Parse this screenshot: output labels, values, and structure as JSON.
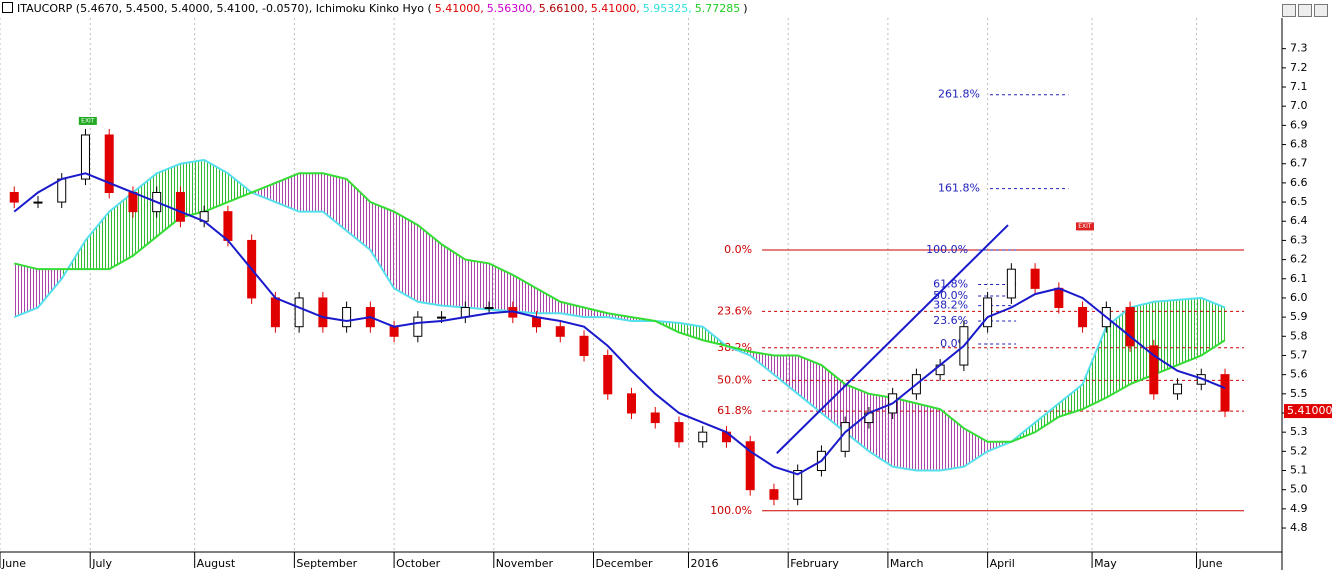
{
  "header": [
    {
      "text": "ITAUCORP (5.4670, 5.4500, 5.4000, 5.4100, -0.0570), Ichimoku Kinko Hyo (",
      "color": "#000000"
    },
    {
      "text": "5.41000,",
      "color": "#e00000"
    },
    {
      "text": "5.56300,",
      "color": "#cc00cc"
    },
    {
      "text": "5.66100,",
      "color": "#b00000"
    },
    {
      "text": "5.41000,",
      "color": "#e00000"
    },
    {
      "text": "5.95325,",
      "color": "#33dddd"
    },
    {
      "text": "5.77285",
      "color": "#22cc22"
    },
    {
      "text": ")",
      "color": "#000000"
    }
  ],
  "chart_data": {
    "type": "candlestick",
    "x": [
      3,
      8,
      13,
      18,
      23,
      28,
      33,
      38,
      43,
      48,
      53,
      58,
      63,
      68,
      73,
      78,
      83,
      88,
      93,
      98,
      103,
      108,
      113,
      118,
      123,
      128,
      133,
      138,
      143,
      148,
      153,
      158,
      163,
      168,
      173,
      178,
      183,
      188,
      193,
      198,
      203,
      208,
      213,
      218,
      223,
      228,
      233,
      238,
      243,
      248,
      253,
      258
    ],
    "open": [
      6.55,
      6.5,
      6.5,
      6.62,
      6.85,
      6.55,
      6.45,
      6.55,
      6.4,
      6.45,
      6.3,
      6.0,
      5.85,
      6.0,
      5.85,
      5.95,
      5.85,
      5.8,
      5.9,
      5.9,
      5.95,
      5.95,
      5.9,
      5.85,
      5.8,
      5.7,
      5.5,
      5.4,
      5.35,
      5.25,
      5.3,
      5.25,
      5.0,
      4.95,
      5.1,
      5.2,
      5.35,
      5.4,
      5.5,
      5.6,
      5.65,
      5.85,
      6.0,
      6.15,
      6.05,
      5.95,
      5.85,
      5.95,
      5.75,
      5.5,
      5.55,
      5.6
    ],
    "close": [
      6.5,
      6.5,
      6.62,
      6.85,
      6.55,
      6.45,
      6.55,
      6.4,
      6.45,
      6.3,
      6.0,
      5.85,
      6.0,
      5.85,
      5.95,
      5.85,
      5.8,
      5.9,
      5.9,
      5.95,
      5.95,
      5.9,
      5.85,
      5.8,
      5.7,
      5.5,
      5.4,
      5.35,
      5.25,
      5.3,
      5.25,
      5.0,
      4.95,
      5.1,
      5.2,
      5.35,
      5.4,
      5.5,
      5.6,
      5.65,
      5.85,
      6.0,
      6.15,
      6.05,
      5.95,
      5.85,
      5.95,
      5.75,
      5.5,
      5.55,
      5.6,
      5.41
    ],
    "up_color": "#000000",
    "down_color": "#e00000",
    "tenkan": {
      "color": "#1a1acc",
      "values": [
        6.45,
        6.55,
        6.62,
        6.65,
        6.6,
        6.55,
        6.5,
        6.45,
        6.4,
        6.3,
        6.15,
        6.0,
        5.95,
        5.9,
        5.88,
        5.9,
        5.85,
        5.87,
        5.88,
        5.9,
        5.92,
        5.93,
        5.9,
        5.88,
        5.85,
        5.75,
        5.62,
        5.5,
        5.4,
        5.35,
        5.3,
        5.2,
        5.12,
        5.08,
        5.15,
        5.3,
        5.4,
        5.45,
        5.55,
        5.65,
        5.75,
        5.9,
        5.95,
        6.02,
        6.05,
        6.0,
        5.9,
        5.8,
        5.7,
        5.62,
        5.58,
        5.53
      ]
    },
    "span_a": {
      "color": "#55e0ee",
      "values": [
        5.9,
        5.95,
        6.1,
        6.3,
        6.45,
        6.55,
        6.65,
        6.7,
        6.72,
        6.65,
        6.55,
        6.5,
        6.45,
        6.45,
        6.35,
        6.25,
        6.05,
        5.98,
        5.96,
        5.95,
        5.94,
        5.93,
        5.92,
        5.92,
        5.9,
        5.9,
        5.88,
        5.88,
        5.87,
        5.85,
        5.75,
        5.7,
        5.6,
        5.5,
        5.4,
        5.3,
        5.2,
        5.12,
        5.1,
        5.1,
        5.12,
        5.2,
        5.25,
        5.35,
        5.45,
        5.55,
        5.85,
        5.95,
        5.98,
        5.99,
        6.0,
        5.95
      ]
    },
    "span_b": {
      "color": "#33dd33",
      "values": [
        6.18,
        6.15,
        6.15,
        6.15,
        6.15,
        6.22,
        6.32,
        6.42,
        6.45,
        6.5,
        6.55,
        6.6,
        6.65,
        6.65,
        6.62,
        6.5,
        6.45,
        6.38,
        6.28,
        6.2,
        6.18,
        6.12,
        6.05,
        5.98,
        5.95,
        5.92,
        5.9,
        5.88,
        5.82,
        5.78,
        5.75,
        5.72,
        5.7,
        5.7,
        5.65,
        5.55,
        5.5,
        5.48,
        5.45,
        5.42,
        5.32,
        5.25,
        5.25,
        5.3,
        5.38,
        5.42,
        5.48,
        5.55,
        5.6,
        5.65,
        5.7,
        5.78
      ]
    },
    "cloud_up_color": "#33bb33",
    "cloud_down_color": "#aa44aa",
    "xlim": [
      0,
      270
    ],
    "xticks": [
      {
        "value": 0,
        "label": "June"
      },
      {
        "value": 19,
        "label": "July"
      },
      {
        "value": 41,
        "label": "August"
      },
      {
        "value": 62,
        "label": "September"
      },
      {
        "value": 83,
        "label": "October"
      },
      {
        "value": 104,
        "label": "November"
      },
      {
        "value": 125,
        "label": "December"
      },
      {
        "value": 145,
        "label": "2016"
      },
      {
        "value": 166,
        "label": "February"
      },
      {
        "value": 187,
        "label": "March"
      },
      {
        "value": 208,
        "label": "April"
      },
      {
        "value": 230,
        "label": "May"
      },
      {
        "value": 252,
        "label": "June"
      }
    ],
    "ylim": [
      4.675,
      7.46
    ],
    "yticks": [
      4.8,
      4.9,
      {
        "value": 5,
        "label": "5.0"
      },
      5.1,
      5.2,
      5.3,
      5.4,
      5.5,
      5.6,
      5.7,
      5.8,
      5.9,
      {
        "value": 6,
        "label": "6.0"
      },
      6.1,
      6.2,
      6.3,
      6.4,
      6.5,
      6.6,
      6.7,
      6.8,
      6.9,
      {
        "value": 7,
        "label": "7.0"
      },
      7.1,
      7.2,
      7.3
    ],
    "grid": true,
    "last_price": {
      "value": 5.41,
      "label": "5.41000",
      "color": "#e00000"
    },
    "fibonacci": [
      {
        "color": "#cc0000",
        "x": [
          160.5,
          262
        ],
        "levels": [
          {
            "label": "0.0%",
            "value": 6.25
          },
          {
            "label": "23.6%",
            "value": 5.93
          },
          {
            "label": "38.2%",
            "value": 5.74
          },
          {
            "label": "50.0%",
            "value": 5.57
          },
          {
            "label": "61.8%",
            "value": 5.41
          },
          {
            "label": "100.0%",
            "value": 4.89
          }
        ]
      },
      {
        "color": "#2222bb",
        "x": [
          208.5,
          225
        ],
        "levels": [
          {
            "label": "261.8%",
            "value": 7.06
          },
          {
            "label": "161.8%",
            "value": 6.57
          }
        ]
      },
      {
        "color": "#2222bb",
        "x": [
          206,
          214
        ],
        "levels": [
          {
            "label": "100.0%",
            "value": 6.25
          },
          {
            "label": "61.8%",
            "value": 6.07
          },
          {
            "label": "50.0%",
            "value": 6.01
          },
          {
            "label": "38.2%",
            "value": 5.96
          },
          {
            "label": "23.6%",
            "value": 5.88
          },
          {
            "label": "0.0%",
            "value": 5.76
          }
        ]
      }
    ],
    "trendline": {
      "color": "#1a1acc",
      "x": [
        163.6,
        212.3
      ],
      "values": [
        5.19,
        6.38
      ]
    },
    "annotations": [
      {
        "text": "EXIT",
        "x": 18.5,
        "value": 6.85,
        "color": "#22aa22"
      },
      {
        "text": "EXIT",
        "x": 228.5,
        "value": 6.3,
        "color": "#dd2222"
      }
    ]
  }
}
